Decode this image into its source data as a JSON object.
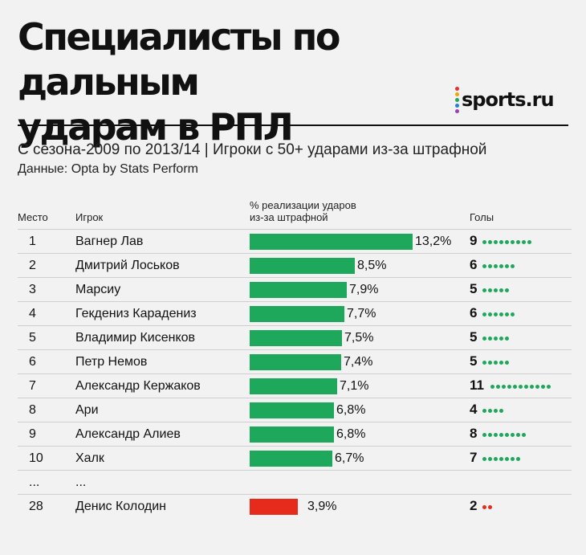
{
  "header": {
    "title_line1": "Специалисты по дальным",
    "title_line2": "ударам в РПЛ",
    "logo_text": "sports.ru",
    "logo_dot_colors": [
      "#e5322d",
      "#f2a50b",
      "#1ea85c",
      "#2a7fd4",
      "#9b3fb5"
    ],
    "subtitle": "С сезона-2009 по 2013/14 |  Игроки с 50+ ударами из-за штрафной",
    "source": "Данные: Opta by Stats Perform"
  },
  "columns": {
    "rank": "Место",
    "player": "Игрок",
    "pct_line1": "% реализации ударов",
    "pct_line2": "из-за штрафной",
    "goals": "Голы"
  },
  "colors": {
    "bar": "#1ea85c",
    "highlight": "#e62a1c"
  },
  "chart_data": {
    "type": "bar",
    "title": "Специалисты по дальным ударам в РПЛ",
    "xlabel": "% реализации ударов из-за штрафной",
    "ylabel": "Игрок",
    "xlim": [
      0,
      14
    ],
    "ellipsis_row": {
      "rank": "...",
      "player": "..."
    },
    "rows": [
      {
        "rank": "1",
        "player": "Вагнер Лав",
        "value": 13.2,
        "label": "13,2%",
        "goals": 9
      },
      {
        "rank": "2",
        "player": "Дмитрий Лоськов",
        "value": 8.5,
        "label": "8,5%",
        "goals": 6
      },
      {
        "rank": "3",
        "player": "Марсиу",
        "value": 7.9,
        "label": "7,9%",
        "goals": 5
      },
      {
        "rank": "4",
        "player": "Гекдениз Карадениз",
        "value": 7.7,
        "label": "7,7%",
        "goals": 6
      },
      {
        "rank": "5",
        "player": "Владимир Кисенков",
        "value": 7.5,
        "label": "7,5%",
        "goals": 5
      },
      {
        "rank": "6",
        "player": "Петр Немов",
        "value": 7.4,
        "label": "7,4%",
        "goals": 5
      },
      {
        "rank": "7",
        "player": "Александр Кержаков",
        "value": 7.1,
        "label": "7,1%",
        "goals": 11
      },
      {
        "rank": "8",
        "player": "Ари",
        "value": 6.8,
        "label": "6,8%",
        "goals": 4
      },
      {
        "rank": "9",
        "player": "Александр Алиев",
        "value": 6.8,
        "label": "6,8%",
        "goals": 8
      },
      {
        "rank": "10",
        "player": "Халк",
        "value": 6.7,
        "label": "6,7%",
        "goals": 7
      },
      {
        "rank": "28",
        "player": "Денис Колодин",
        "value": 3.9,
        "label": "3,9%",
        "goals": 2,
        "highlight": true
      }
    ]
  }
}
